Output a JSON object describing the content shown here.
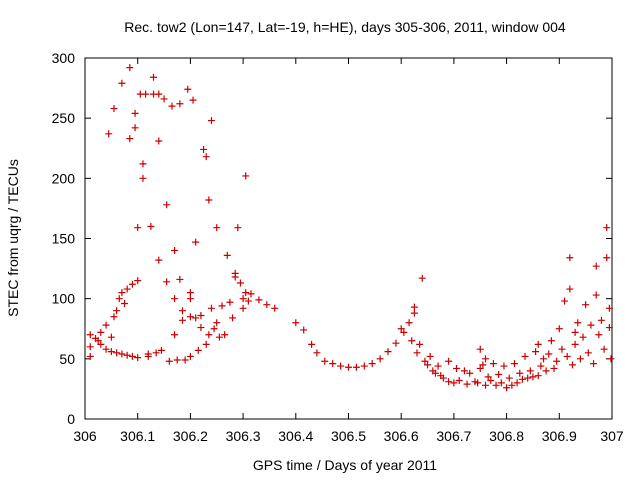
{
  "chart_data": {
    "type": "scatter",
    "title": "Rec. tow2 (Lon=147, Lat=-19, h=HE), days 305-306, 2011, window 004",
    "xlabel": "GPS time / Days of year 2011",
    "ylabel": "STEC from uqrg / TECUs",
    "xlim": [
      306,
      307
    ],
    "ylim": [
      0,
      300
    ],
    "xticks": [
      306,
      306.1,
      306.2,
      306.3,
      306.4,
      306.5,
      306.6,
      306.7,
      306.8,
      306.9,
      307
    ],
    "xtick_labels": [
      "306",
      "306.1",
      "306.2",
      "306.3",
      "306.4",
      "306.5",
      "306.6",
      "306.7",
      "306.8",
      "306.9",
      "307"
    ],
    "yticks": [
      0,
      50,
      100,
      150,
      200,
      250,
      300
    ],
    "ytick_labels": [
      "0",
      "50",
      "100",
      "150",
      "200",
      "250",
      "300"
    ],
    "grid": false,
    "marker_color": "#cc0000",
    "marker": "plus",
    "points": [
      [
        306.01,
        52
      ],
      [
        306.01,
        70
      ],
      [
        306.01,
        60
      ],
      [
        306.02,
        67
      ],
      [
        306.025,
        65
      ],
      [
        306.03,
        62
      ],
      [
        306.03,
        72
      ],
      [
        306.04,
        58
      ],
      [
        306.04,
        78
      ],
      [
        306.045,
        237
      ],
      [
        306.05,
        56
      ],
      [
        306.05,
        68
      ],
      [
        306.055,
        85
      ],
      [
        306.055,
        258
      ],
      [
        306.06,
        90
      ],
      [
        306.06,
        55
      ],
      [
        306.065,
        100
      ],
      [
        306.07,
        54
      ],
      [
        306.07,
        105
      ],
      [
        306.07,
        279
      ],
      [
        306.075,
        96
      ],
      [
        306.08,
        53
      ],
      [
        306.08,
        108
      ],
      [
        306.085,
        233
      ],
      [
        306.085,
        292
      ],
      [
        306.09,
        52
      ],
      [
        306.09,
        112
      ],
      [
        306.095,
        242
      ],
      [
        306.095,
        254
      ],
      [
        306.1,
        51
      ],
      [
        306.1,
        115
      ],
      [
        306.1,
        159
      ],
      [
        306.105,
        270
      ],
      [
        306.11,
        200
      ],
      [
        306.11,
        212
      ],
      [
        306.115,
        270
      ],
      [
        306.12,
        52
      ],
      [
        306.12,
        54
      ],
      [
        306.125,
        160
      ],
      [
        306.13,
        284
      ],
      [
        306.13,
        270
      ],
      [
        306.135,
        55
      ],
      [
        306.14,
        231
      ],
      [
        306.14,
        270
      ],
      [
        306.14,
        132
      ],
      [
        306.145,
        57
      ],
      [
        306.15,
        266
      ],
      [
        306.155,
        178
      ],
      [
        306.155,
        114
      ],
      [
        306.16,
        48
      ],
      [
        306.165,
        260
      ],
      [
        306.17,
        140
      ],
      [
        306.17,
        70
      ],
      [
        306.17,
        100
      ],
      [
        306.175,
        49
      ],
      [
        306.18,
        262
      ],
      [
        306.18,
        116
      ],
      [
        306.185,
        90
      ],
      [
        306.185,
        82
      ],
      [
        306.19,
        49
      ],
      [
        306.195,
        274
      ],
      [
        306.2,
        100
      ],
      [
        306.2,
        105
      ],
      [
        306.2,
        85
      ],
      [
        306.2,
        52
      ],
      [
        306.205,
        265
      ],
      [
        306.21,
        147
      ],
      [
        306.21,
        84
      ],
      [
        306.215,
        57
      ],
      [
        306.22,
        76
      ],
      [
        306.22,
        86
      ],
      [
        306.225,
        224
      ],
      [
        306.23,
        218
      ],
      [
        306.23,
        62
      ],
      [
        306.235,
        182
      ],
      [
        306.235,
        70
      ],
      [
        306.24,
        248
      ],
      [
        306.24,
        92
      ],
      [
        306.245,
        75
      ],
      [
        306.25,
        159
      ],
      [
        306.25,
        80
      ],
      [
        306.255,
        68
      ],
      [
        306.26,
        94
      ],
      [
        306.265,
        70
      ],
      [
        306.27,
        136
      ],
      [
        306.275,
        97
      ],
      [
        306.28,
        84
      ],
      [
        306.285,
        118
      ],
      [
        306.285,
        121
      ],
      [
        306.29,
        159
      ],
      [
        306.295,
        113
      ],
      [
        306.3,
        100
      ],
      [
        306.3,
        92
      ],
      [
        306.305,
        105
      ],
      [
        306.305,
        202
      ],
      [
        306.31,
        98
      ],
      [
        306.315,
        104
      ],
      [
        306.33,
        99
      ],
      [
        306.345,
        95
      ],
      [
        306.36,
        92
      ],
      [
        306.4,
        80
      ],
      [
        306.415,
        74
      ],
      [
        306.43,
        62
      ],
      [
        306.44,
        55
      ],
      [
        306.455,
        48
      ],
      [
        306.47,
        46
      ],
      [
        306.485,
        44
      ],
      [
        306.5,
        43
      ],
      [
        306.515,
        43
      ],
      [
        306.53,
        44
      ],
      [
        306.545,
        46
      ],
      [
        306.56,
        50
      ],
      [
        306.575,
        56
      ],
      [
        306.59,
        63
      ],
      [
        306.6,
        75
      ],
      [
        306.605,
        72
      ],
      [
        306.615,
        80
      ],
      [
        306.62,
        65
      ],
      [
        306.625,
        88
      ],
      [
        306.625,
        93
      ],
      [
        306.63,
        55
      ],
      [
        306.635,
        62
      ],
      [
        306.64,
        117
      ],
      [
        306.645,
        48
      ],
      [
        306.65,
        45
      ],
      [
        306.655,
        52
      ],
      [
        306.66,
        40
      ],
      [
        306.665,
        38
      ],
      [
        306.67,
        44
      ],
      [
        306.675,
        36
      ],
      [
        306.68,
        34
      ],
      [
        306.69,
        31
      ],
      [
        306.69,
        48
      ],
      [
        306.7,
        30
      ],
      [
        306.705,
        42
      ],
      [
        306.71,
        32
      ],
      [
        306.72,
        40
      ],
      [
        306.725,
        29
      ],
      [
        306.73,
        38
      ],
      [
        306.74,
        31
      ],
      [
        306.745,
        30
      ],
      [
        306.75,
        42
      ],
      [
        306.75,
        58
      ],
      [
        306.755,
        45
      ],
      [
        306.76,
        28
      ],
      [
        306.76,
        50
      ],
      [
        306.765,
        35
      ],
      [
        306.77,
        32
      ],
      [
        306.775,
        46
      ],
      [
        306.78,
        28
      ],
      [
        306.785,
        37
      ],
      [
        306.79,
        30
      ],
      [
        306.795,
        44
      ],
      [
        306.8,
        26
      ],
      [
        306.805,
        34
      ],
      [
        306.81,
        28
      ],
      [
        306.815,
        46
      ],
      [
        306.82,
        30
      ],
      [
        306.825,
        38
      ],
      [
        306.83,
        33
      ],
      [
        306.835,
        52
      ],
      [
        306.84,
        34
      ],
      [
        306.845,
        40
      ],
      [
        306.85,
        35
      ],
      [
        306.855,
        56
      ],
      [
        306.86,
        36
      ],
      [
        306.86,
        62
      ],
      [
        306.865,
        44
      ],
      [
        306.87,
        50
      ],
      [
        306.875,
        40
      ],
      [
        306.88,
        54
      ],
      [
        306.885,
        65
      ],
      [
        306.89,
        42
      ],
      [
        306.895,
        48
      ],
      [
        306.9,
        75
      ],
      [
        306.905,
        58
      ],
      [
        306.91,
        98
      ],
      [
        306.915,
        52
      ],
      [
        306.92,
        108
      ],
      [
        306.92,
        134
      ],
      [
        306.925,
        45
      ],
      [
        306.93,
        62
      ],
      [
        306.93,
        72
      ],
      [
        306.935,
        80
      ],
      [
        306.94,
        50
      ],
      [
        306.945,
        68
      ],
      [
        306.95,
        95
      ],
      [
        306.955,
        55
      ],
      [
        306.96,
        78
      ],
      [
        306.965,
        46
      ],
      [
        306.97,
        103
      ],
      [
        306.97,
        127
      ],
      [
        306.975,
        70
      ],
      [
        306.98,
        82
      ],
      [
        306.985,
        58
      ],
      [
        306.99,
        134
      ],
      [
        306.99,
        159
      ],
      [
        306.995,
        92
      ],
      [
        306.995,
        76
      ],
      [
        306.998,
        50
      ]
    ]
  }
}
